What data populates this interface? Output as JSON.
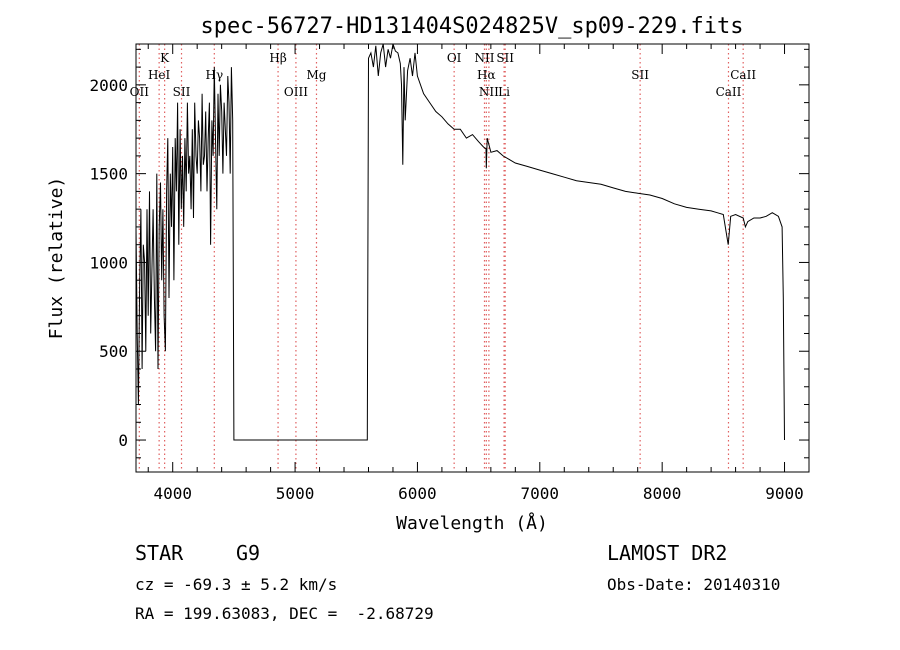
{
  "chart_data": {
    "type": "line",
    "title": "spec-56727-HD131404S024825V_sp09-229.fits",
    "xlabel": "Wavelength (Å)",
    "ylabel": "Flux (relative)",
    "xlim": [
      3700,
      9200
    ],
    "ylim": [
      -180,
      2230
    ],
    "xticks": [
      4000,
      5000,
      6000,
      7000,
      8000,
      9000
    ],
    "yticks": [
      0,
      500,
      1000,
      1500,
      2000
    ],
    "grid": false,
    "line_color": "#000000",
    "marker_color": "#e06060",
    "spectral_lines": [
      {
        "label": "OII",
        "x": 3727,
        "row": 3
      },
      {
        "label": "K",
        "x": 3934,
        "row": 1
      },
      {
        "label": "HeI",
        "x": 3889,
        "row": 2
      },
      {
        "label": "SII",
        "x": 4072,
        "row": 3
      },
      {
        "label": "Hγ",
        "x": 4340,
        "row": 2
      },
      {
        "label": "Hβ",
        "x": 4861,
        "row": 1
      },
      {
        "label": "OIII",
        "x": 5007,
        "row": 3
      },
      {
        "label": "Mg",
        "x": 5175,
        "row": 2
      },
      {
        "label": "OI",
        "x": 6300,
        "row": 1
      },
      {
        "label": "NII",
        "x": 6548,
        "row": 1
      },
      {
        "label": "SII",
        "x": 6717,
        "row": 1
      },
      {
        "label": "Hα",
        "x": 6563,
        "row": 2
      },
      {
        "label": "NII",
        "x": 6584,
        "row": 3
      },
      {
        "label": "Li",
        "x": 6708,
        "row": 3
      },
      {
        "label": "SII",
        "x": 7820,
        "row": 2
      },
      {
        "label": "CaII",
        "x": 8662,
        "row": 2
      },
      {
        "label": "CaII",
        "x": 8542,
        "row": 3
      }
    ],
    "spectrum": {
      "x": [
        3700,
        3710,
        3720,
        3730,
        3740,
        3750,
        3760,
        3770,
        3780,
        3790,
        3800,
        3810,
        3820,
        3830,
        3840,
        3850,
        3860,
        3870,
        3880,
        3890,
        3900,
        3910,
        3920,
        3930,
        3940,
        3950,
        3960,
        3970,
        3980,
        3990,
        4000,
        4010,
        4020,
        4030,
        4040,
        4050,
        4060,
        4070,
        4080,
        4090,
        4100,
        4110,
        4120,
        4130,
        4140,
        4150,
        4160,
        4170,
        4180,
        4190,
        4200,
        4210,
        4220,
        4230,
        4240,
        4250,
        4260,
        4270,
        4280,
        4290,
        4300,
        4310,
        4320,
        4330,
        4340,
        4350,
        4360,
        4370,
        4380,
        4390,
        4400,
        4410,
        4420,
        4430,
        4440,
        4450,
        4460,
        4470,
        4480,
        4490,
        4500,
        4510,
        4600,
        5000,
        5500,
        5580,
        5590,
        5600,
        5620,
        5640,
        5660,
        5680,
        5700,
        5720,
        5740,
        5760,
        5780,
        5800,
        5820,
        5840,
        5860,
        5870,
        5880,
        5890,
        5900,
        5920,
        5940,
        5960,
        5980,
        6000,
        6050,
        6100,
        6150,
        6200,
        6250,
        6300,
        6350,
        6400,
        6450,
        6500,
        6540,
        6560,
        6563,
        6570,
        6600,
        6650,
        6700,
        6750,
        6800,
        6900,
        7000,
        7100,
        7200,
        7300,
        7400,
        7500,
        7600,
        7700,
        7800,
        7900,
        8000,
        8100,
        8200,
        8300,
        8400,
        8450,
        8500,
        8540,
        8560,
        8600,
        8662,
        8680,
        8700,
        8750,
        8800,
        8850,
        8900,
        8950,
        8980,
        8990,
        9000
      ],
      "y": [
        1200,
        600,
        200,
        900,
        1300,
        400,
        1100,
        1000,
        500,
        1300,
        700,
        1400,
        600,
        950,
        1300,
        800,
        500,
        1500,
        400,
        1200,
        1450,
        900,
        1300,
        700,
        500,
        1400,
        1700,
        800,
        1500,
        1200,
        1650,
        900,
        1700,
        1400,
        1900,
        1100,
        1750,
        1300,
        1600,
        1200,
        1700,
        1400,
        1900,
        1500,
        1600,
        1300,
        1750,
        1250,
        1900,
        1600,
        1500,
        1800,
        1700,
        1400,
        1950,
        1550,
        1600,
        1850,
        1400,
        1700,
        1900,
        1100,
        1800,
        1600,
        2100,
        1700,
        1300,
        1950,
        1600,
        2000,
        1850,
        1500,
        1900,
        1750,
        1600,
        2050,
        1900,
        1500,
        2100,
        1800,
        0,
        0,
        0,
        0,
        0,
        0,
        0,
        2150,
        2180,
        2100,
        2220,
        2050,
        2180,
        2230,
        2100,
        2200,
        2150,
        2230,
        2190,
        2180,
        2120,
        2000,
        1550,
        2100,
        1800,
        2080,
        2150,
        2050,
        2180,
        2050,
        1950,
        1900,
        1850,
        1820,
        1780,
        1750,
        1750,
        1700,
        1720,
        1680,
        1650,
        1640,
        1530,
        1700,
        1620,
        1630,
        1600,
        1580,
        1560,
        1540,
        1520,
        1500,
        1480,
        1460,
        1450,
        1440,
        1420,
        1400,
        1390,
        1380,
        1360,
        1330,
        1310,
        1300,
        1290,
        1280,
        1270,
        1100,
        1260,
        1270,
        1250,
        1200,
        1230,
        1250,
        1250,
        1260,
        1280,
        1260,
        1200,
        800,
        0
      ]
    }
  },
  "info": {
    "object_class": "STAR",
    "subclass": "G9",
    "survey": "LAMOST DR2",
    "cz": "cz = -69.3 ± 5.2 km/s",
    "obs_date": "Obs-Date: 20140310",
    "coords": "RA = 199.63083, DEC =  -2.68729"
  }
}
